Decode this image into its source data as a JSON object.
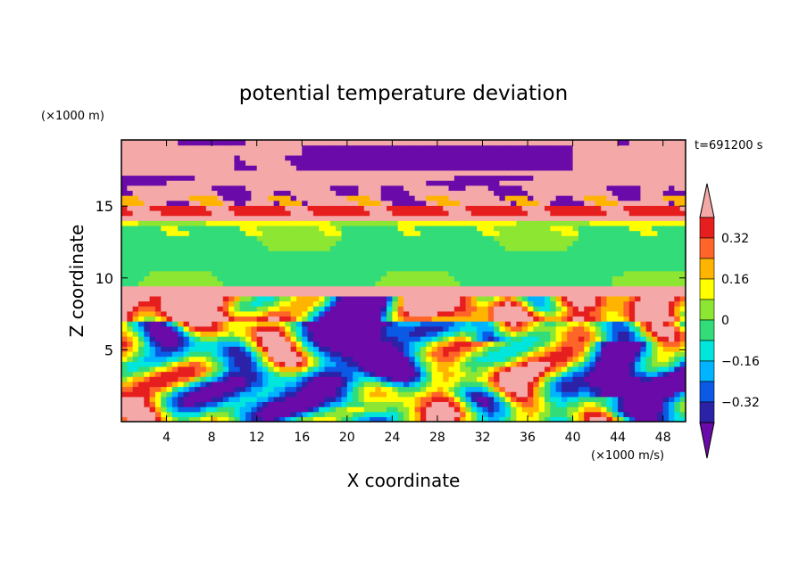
{
  "chart_data": {
    "type": "heatmap",
    "title": "potential temperature deviation",
    "xlabel": "X coordinate",
    "ylabel": "Z coordinate",
    "x_unit": "(×1000 m/s)",
    "y_unit": "(×1000 m)",
    "time_label": "t=691200 s",
    "xlim": [
      0,
      50
    ],
    "ylim": [
      0,
      19.6
    ],
    "x_ticks": [
      4,
      8,
      12,
      16,
      20,
      24,
      28,
      32,
      36,
      40,
      44,
      48
    ],
    "y_ticks": [
      5,
      10,
      15
    ],
    "colorbar": {
      "ticks": [
        "0.32",
        "0.16",
        "0",
        "−0.16",
        "−0.32"
      ],
      "levels": [
        -0.4,
        -0.32,
        -0.24,
        -0.16,
        -0.08,
        0,
        0.08,
        0.16,
        0.24,
        0.32,
        0.4
      ],
      "colors": [
        "#6a0aa8",
        "#2b22a8",
        "#0a5ae6",
        "#00b4ff",
        "#00e6dc",
        "#32dc78",
        "#8ce632",
        "#ffff00",
        "#ffb400",
        "#ff6428",
        "#e61e1e",
        "#f5a8a8"
      ],
      "extend": "both"
    },
    "field_description_rows": [
      {
        "z_range": [
          17.5,
          19.6
        ],
        "dominant": "positive > 0.4 (pink) with large negative < -0.4 (purple) patch near x 16-40"
      },
      {
        "z_range": [
          14.0,
          15.0
        ],
        "dominant": "0.32 to 0.4 (red/orange) band"
      },
      {
        "z_range": [
          9.0,
          13.8
        ],
        "dominant": "-0.08 to 0.08 (green)"
      },
      {
        "z_range": [
          8.2,
          9.0
        ],
        "dominant": "positive > 0.4 (pink)"
      },
      {
        "z_range": [
          0,
          8.2
        ],
        "dominant": "turbulent mixture of all levels, large negative purple plumes near x 18-30"
      }
    ]
  }
}
